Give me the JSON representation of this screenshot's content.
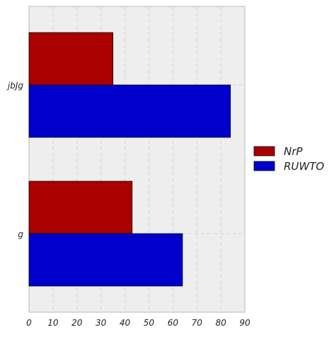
{
  "chart_data": {
    "type": "bar",
    "orientation": "horizontal",
    "categories": [
      "jbJg",
      "g"
    ],
    "series": [
      {
        "name": "NrP",
        "values": [
          35,
          43
        ],
        "color": "#aa0000"
      },
      {
        "name": "RUWTO",
        "values": [
          84,
          64
        ],
        "color": "#0000cc"
      }
    ],
    "title": "",
    "xlabel": "",
    "ylabel": "",
    "xlim": [
      0,
      90
    ],
    "xticks": [
      "0",
      "10",
      "20",
      "30",
      "40",
      "50",
      "60",
      "70",
      "80",
      "90"
    ],
    "grid": true,
    "legend_position": "right",
    "background_color": "#eeeeee",
    "grid_color": "#d4d4d4"
  }
}
